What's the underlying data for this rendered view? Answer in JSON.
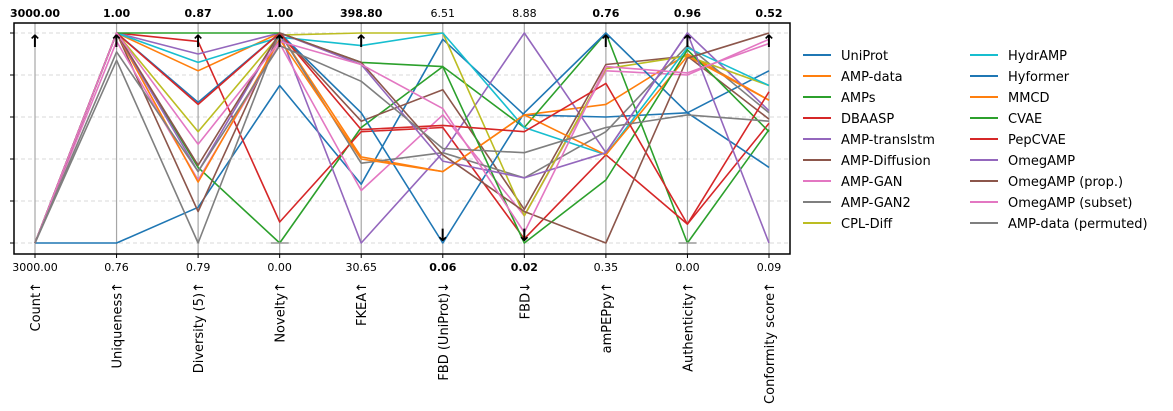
{
  "chart_data": {
    "type": "parallel-coordinates",
    "axes": [
      {
        "name": "Count",
        "arrow": "↑",
        "top": "3000.00",
        "bottom": "3000.00",
        "top_bold": true,
        "bottom_bold": false
      },
      {
        "name": "Uniqueness",
        "arrow": "↑",
        "top": "1.00",
        "bottom": "0.76",
        "top_bold": true,
        "bottom_bold": false
      },
      {
        "name": "Diversity (5)",
        "arrow": "↑",
        "top": "0.87",
        "bottom": "0.79",
        "top_bold": true,
        "bottom_bold": false
      },
      {
        "name": "Novelty",
        "arrow": "↑",
        "top": "1.00",
        "bottom": "0.00",
        "top_bold": true,
        "bottom_bold": false
      },
      {
        "name": "FKEA",
        "arrow": "↑",
        "top": "398.80",
        "bottom": "30.65",
        "top_bold": true,
        "bottom_bold": false
      },
      {
        "name": "FBD (UniProt)",
        "arrow": "↓",
        "top": "6.51",
        "bottom": "0.06",
        "top_bold": false,
        "bottom_bold": true
      },
      {
        "name": "FBD",
        "arrow": "↓",
        "top": "8.88",
        "bottom": "0.02",
        "top_bold": false,
        "bottom_bold": true
      },
      {
        "name": "amPEPpy",
        "arrow": "↑",
        "top": "0.76",
        "bottom": "0.35",
        "top_bold": true,
        "bottom_bold": false
      },
      {
        "name": "Authenticity",
        "arrow": "↑",
        "top": "0.96",
        "bottom": "0.00",
        "top_bold": true,
        "bottom_bold": false
      },
      {
        "name": "Conformity score",
        "arrow": "↑",
        "top": "0.52",
        "bottom": "0.09",
        "top_bold": true,
        "bottom_bold": false
      }
    ],
    "value_scale": "normalized 0-1 per axis (0 = axis bottom, 1 = axis top)",
    "grid": "horizontal dashed",
    "legend_position": "right",
    "legend_columns": 2,
    "series": [
      {
        "name": "UniProt",
        "color": "#1f77b4",
        "values": [
          0.0,
          0.0,
          0.17,
          0.75,
          0.28,
          0.97,
          0.61,
          0.6,
          0.62,
          0.82
        ]
      },
      {
        "name": "AMP-data",
        "color": "#ff7f0e",
        "values": [
          0.0,
          1.0,
          0.82,
          1.0,
          0.41,
          0.34,
          0.61,
          0.66,
          0.9,
          0.68
        ]
      },
      {
        "name": "AMPs",
        "color": "#2ca02c",
        "values": [
          0.0,
          1.0,
          0.36,
          0.0,
          0.55,
          0.84,
          0.55,
          1.0,
          0.0,
          0.54
        ]
      },
      {
        "name": "DBAASP",
        "color": "#d62728",
        "values": [
          0.0,
          1.0,
          0.96,
          0.1,
          0.53,
          0.55,
          0.02,
          0.42,
          0.09,
          0.57
        ]
      },
      {
        "name": "AMP-translstm",
        "color": "#9467bd",
        "values": [
          0.0,
          1.0,
          0.9,
          1.0,
          0.0,
          0.43,
          1.0,
          0.43,
          1.0,
          0.63
        ]
      },
      {
        "name": "AMP-Diffusion",
        "color": "#8c564b",
        "values": [
          0.0,
          1.0,
          0.15,
          1.0,
          0.58,
          0.73,
          0.16,
          0.85,
          0.89,
          0.59
        ]
      },
      {
        "name": "AMP-GAN",
        "color": "#e377c2",
        "values": [
          0.0,
          0.96,
          0.3,
          0.95,
          0.25,
          0.61,
          0.13,
          0.82,
          0.8,
          0.97
        ]
      },
      {
        "name": "AMP-GAN2",
        "color": "#7f7f7f",
        "values": [
          0.0,
          0.87,
          0.0,
          1.0,
          0.38,
          0.43,
          0.31,
          0.53,
          0.94,
          0.62
        ]
      },
      {
        "name": "CPL-Diff",
        "color": "#bcbd22",
        "values": [
          0.0,
          1.0,
          0.53,
          0.99,
          1.0,
          1.0,
          0.13,
          0.83,
          0.89,
          0.75
        ]
      },
      {
        "name": "HydrAMP",
        "color": "#17becf",
        "values": [
          0.0,
          1.0,
          0.86,
          0.98,
          0.94,
          1.0,
          0.55,
          0.42,
          0.93,
          0.75
        ]
      },
      {
        "name": "Hyformer",
        "color": "#1f77b4",
        "values": [
          0.0,
          1.0,
          0.67,
          1.0,
          0.62,
          0.0,
          0.62,
          1.0,
          0.62,
          0.36
        ]
      },
      {
        "name": "MMCD",
        "color": "#ff7f0e",
        "values": [
          0.0,
          1.0,
          0.29,
          0.97,
          0.4,
          0.34,
          0.61,
          0.42,
          0.89,
          0.68
        ]
      },
      {
        "name": "CVAE",
        "color": "#2ca02c",
        "values": [
          0.0,
          1.0,
          1.0,
          1.0,
          0.86,
          0.84,
          0.0,
          0.3,
          0.92,
          0.53
        ]
      },
      {
        "name": "PepCVAE",
        "color": "#d62728",
        "values": [
          0.0,
          1.0,
          0.66,
          1.0,
          0.54,
          0.56,
          0.53,
          0.76,
          0.09,
          0.72
        ]
      },
      {
        "name": "OmegAMP",
        "color": "#9467bd",
        "values": [
          0.0,
          1.0,
          0.34,
          1.0,
          0.85,
          0.39,
          0.31,
          0.43,
          1.0,
          0.0
        ]
      },
      {
        "name": "OmegAMP (prop.)",
        "color": "#8c564b",
        "values": [
          0.0,
          1.0,
          0.37,
          1.0,
          0.86,
          0.42,
          0.15,
          0.0,
          0.88,
          1.0
        ]
      },
      {
        "name": "OmegAMP (subset)",
        "color": "#e377c2",
        "values": [
          0.0,
          1.0,
          0.47,
          0.96,
          0.85,
          0.64,
          0.05,
          0.84,
          0.81,
          0.95
        ]
      },
      {
        "name": "AMP-data (permuted)",
        "color": "#7f7f7f",
        "values": [
          0.0,
          0.91,
          0.34,
          0.94,
          0.77,
          0.45,
          0.43,
          0.55,
          0.61,
          0.58
        ]
      }
    ]
  }
}
